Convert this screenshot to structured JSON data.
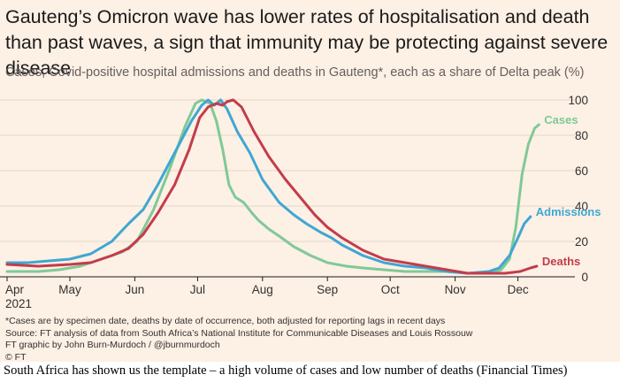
{
  "title": "Gauteng’s Omicron wave has lower rates of hospitalisation and death than past waves, a sign that immunity may be protecting against severe disease",
  "subtitle": "Cases, Covid-positive hospital admissions and deaths in Gauteng*, each as a share of Delta peak (%)",
  "footnote": "*Cases are by specimen date, deaths by date of occurrence, both adjusted for reporting lags in recent days",
  "source": "Source: FT analysis of data from South Africa’s National Institute for Communicable Diseases and Louis Rossouw",
  "credit": "FT graphic by John Burn-Murdoch / @jburnmurdoch",
  "copyright": "© FT",
  "caption": "South Africa has shown us the template – a high volume of cases and low number of deaths (Financial Times)",
  "chart_data": {
    "type": "line",
    "x_unit": "days since 1 Apr 2021",
    "xticks": [
      {
        "x": 0,
        "label": "Apr"
      },
      {
        "x": 30,
        "label": "May"
      },
      {
        "x": 61,
        "label": "Jun"
      },
      {
        "x": 91,
        "label": "Jul"
      },
      {
        "x": 122,
        "label": "Aug"
      },
      {
        "x": 153,
        "label": "Sep"
      },
      {
        "x": 183,
        "label": "Oct"
      },
      {
        "x": 214,
        "label": "Nov"
      },
      {
        "x": 244,
        "label": "Dec"
      }
    ],
    "year_label": "2021",
    "xlim": [
      0,
      256
    ],
    "ylim": [
      0,
      100
    ],
    "yticks": [
      0,
      20,
      40,
      60,
      80,
      100
    ],
    "grid": true,
    "legend": "direct labels at line ends",
    "series": [
      {
        "name": "Cases",
        "color": "#7fc998",
        "points": [
          [
            0,
            3
          ],
          [
            15,
            3
          ],
          [
            25,
            4
          ],
          [
            35,
            6
          ],
          [
            45,
            10
          ],
          [
            55,
            14
          ],
          [
            62,
            20
          ],
          [
            70,
            38
          ],
          [
            78,
            62
          ],
          [
            85,
            85
          ],
          [
            90,
            98
          ],
          [
            93,
            100
          ],
          [
            97,
            98
          ],
          [
            100,
            88
          ],
          [
            103,
            72
          ],
          [
            106,
            52
          ],
          [
            109,
            45
          ],
          [
            113,
            42
          ],
          [
            117,
            36
          ],
          [
            120,
            32
          ],
          [
            125,
            27
          ],
          [
            130,
            23
          ],
          [
            137,
            17
          ],
          [
            145,
            12
          ],
          [
            153,
            8
          ],
          [
            162,
            6
          ],
          [
            170,
            5
          ],
          [
            180,
            4
          ],
          [
            190,
            3
          ],
          [
            200,
            3
          ],
          [
            210,
            3
          ],
          [
            220,
            2
          ],
          [
            230,
            2
          ],
          [
            236,
            4
          ],
          [
            240,
            10
          ],
          [
            243,
            28
          ],
          [
            246,
            58
          ],
          [
            249,
            75
          ],
          [
            252,
            84
          ],
          [
            254,
            86
          ]
        ]
      },
      {
        "name": "Admissions",
        "color": "#3fa7d2",
        "points": [
          [
            0,
            8
          ],
          [
            10,
            8
          ],
          [
            20,
            9
          ],
          [
            30,
            10
          ],
          [
            40,
            13
          ],
          [
            50,
            20
          ],
          [
            58,
            30
          ],
          [
            65,
            38
          ],
          [
            72,
            52
          ],
          [
            80,
            70
          ],
          [
            88,
            88
          ],
          [
            93,
            97
          ],
          [
            96,
            100
          ],
          [
            99,
            97
          ],
          [
            102,
            100
          ],
          [
            105,
            95
          ],
          [
            110,
            82
          ],
          [
            116,
            70
          ],
          [
            122,
            55
          ],
          [
            130,
            42
          ],
          [
            137,
            35
          ],
          [
            143,
            30
          ],
          [
            150,
            25
          ],
          [
            155,
            22
          ],
          [
            160,
            18
          ],
          [
            170,
            12
          ],
          [
            180,
            8
          ],
          [
            190,
            6
          ],
          [
            200,
            5
          ],
          [
            210,
            3
          ],
          [
            220,
            2
          ],
          [
            230,
            3
          ],
          [
            235,
            5
          ],
          [
            240,
            12
          ],
          [
            244,
            22
          ],
          [
            247,
            30
          ],
          [
            250,
            34
          ]
        ]
      },
      {
        "name": "Deaths",
        "color": "#c33c4b",
        "points": [
          [
            0,
            7
          ],
          [
            15,
            6
          ],
          [
            30,
            7
          ],
          [
            40,
            8
          ],
          [
            50,
            12
          ],
          [
            58,
            16
          ],
          [
            65,
            24
          ],
          [
            72,
            36
          ],
          [
            80,
            52
          ],
          [
            87,
            72
          ],
          [
            92,
            90
          ],
          [
            96,
            96
          ],
          [
            100,
            98
          ],
          [
            103,
            97
          ],
          [
            105,
            99
          ],
          [
            108,
            100
          ],
          [
            112,
            96
          ],
          [
            118,
            82
          ],
          [
            125,
            68
          ],
          [
            133,
            55
          ],
          [
            140,
            45
          ],
          [
            147,
            35
          ],
          [
            153,
            28
          ],
          [
            160,
            22
          ],
          [
            170,
            15
          ],
          [
            180,
            10
          ],
          [
            190,
            8
          ],
          [
            200,
            6
          ],
          [
            210,
            4
          ],
          [
            220,
            2
          ],
          [
            230,
            2
          ],
          [
            238,
            2
          ],
          [
            245,
            3
          ],
          [
            250,
            5
          ],
          [
            253,
            6
          ]
        ]
      }
    ]
  }
}
